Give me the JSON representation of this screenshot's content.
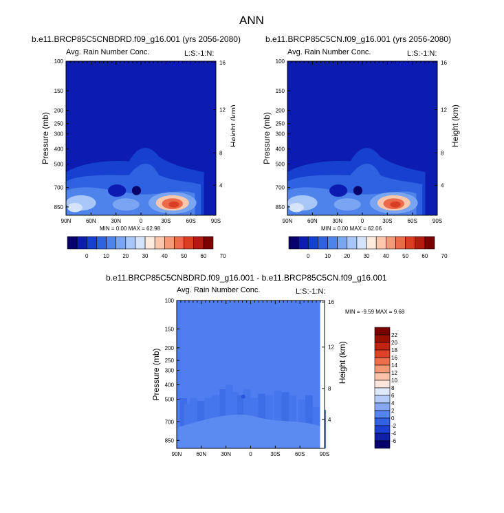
{
  "figure_title": "ANN",
  "palettes": {
    "abs": [
      "#08006b",
      "#0c1bb0",
      "#1640cf",
      "#2e62e0",
      "#4d83eb",
      "#7aa5f2",
      "#a8c6f7",
      "#d6e4fb",
      "#fdebdd",
      "#fbc8ad",
      "#f59a78",
      "#ea6a4a",
      "#d93e25",
      "#b41b10",
      "#7b0000"
    ],
    "diff": [
      "#08006b",
      "#0f1fa6",
      "#1a3fd2",
      "#3461e4",
      "#5484ed",
      "#86a8f3",
      "#b5cbf8",
      "#dfe9fc",
      "#fde7dc",
      "#fbc3a8",
      "#f49876",
      "#ec6c4b",
      "#dd4127",
      "#c12410",
      "#981000",
      "#7b0000"
    ]
  },
  "chart_data": [
    {
      "type": "heatmap",
      "title": "b.e11.BRCP85C5CNBDRD.f09_g16.001 (yrs 2056-2080)",
      "left_label": "Avg. Rain Number Conc.",
      "right_label": "L:S:-1:N:",
      "xlabel": "",
      "ylabel": "Pressure (mb)",
      "y2label": "Height (km)",
      "xticks": [
        "90N",
        "60N",
        "30N",
        "0",
        "30S",
        "60S",
        "90S"
      ],
      "yticks": [
        "100",
        "150",
        "200",
        "250",
        "300",
        "400",
        "500",
        "700",
        "850"
      ],
      "y2ticks": [
        "16",
        "12",
        "8",
        "4"
      ],
      "stats": "MIN =   0.00  MAX =  62.98",
      "min": 0.0,
      "max": 62.98,
      "colorbar": {
        "labels": [
          "0",
          "10",
          "20",
          "30",
          "40",
          "50",
          "60",
          "70"
        ],
        "levels": [
          -5,
          0,
          5,
          10,
          15,
          20,
          25,
          30,
          35,
          40,
          45,
          50,
          55,
          60,
          65,
          70
        ]
      }
    },
    {
      "type": "heatmap",
      "title": "b.e11.BRCP85C5CN.f09_g16.001 (yrs 2056-2080)",
      "left_label": "Avg. Rain Number Conc.",
      "right_label": "L:S:-1:N:",
      "xlabel": "",
      "ylabel": "Pressure (mb)",
      "y2label": "Height (km)",
      "xticks": [
        "90N",
        "60N",
        "30N",
        "0",
        "30S",
        "60S",
        "90S"
      ],
      "yticks": [
        "100",
        "150",
        "200",
        "250",
        "300",
        "400",
        "500",
        "700",
        "850"
      ],
      "y2ticks": [
        "16",
        "12",
        "8",
        "4"
      ],
      "stats": "MIN =   0.00  MAX =  62.06",
      "min": 0.0,
      "max": 62.06,
      "colorbar": {
        "labels": [
          "0",
          "10",
          "20",
          "30",
          "40",
          "50",
          "60",
          "70"
        ],
        "levels": [
          -5,
          0,
          5,
          10,
          15,
          20,
          25,
          30,
          35,
          40,
          45,
          50,
          55,
          60,
          65,
          70
        ]
      }
    },
    {
      "type": "heatmap",
      "title": "b.e11.BRCP85C5CNBDRD.f09_g16.001 - b.e11.BRCP85C5CN.f09_g16.001",
      "left_label": "Avg. Rain Number Conc.",
      "right_label": "L:S:-1:N:",
      "xlabel": "",
      "ylabel": "Pressure (mb)",
      "y2label": "Height (km)",
      "xticks": [
        "90N",
        "60N",
        "30N",
        "0",
        "30S",
        "60S",
        "90S"
      ],
      "yticks": [
        "100",
        "150",
        "200",
        "250",
        "300",
        "400",
        "500",
        "700",
        "850"
      ],
      "y2ticks": [
        "16",
        "12",
        "8",
        "4"
      ],
      "stats": "MIN =  -9.59  MAX =   9.68",
      "min": -9.59,
      "max": 9.68,
      "colorbar": {
        "labels": [
          "22",
          "20",
          "18",
          "16",
          "14",
          "12",
          "10",
          "8",
          "6",
          "4",
          "2",
          "0",
          "-2",
          "-4",
          "-6"
        ]
      }
    }
  ]
}
